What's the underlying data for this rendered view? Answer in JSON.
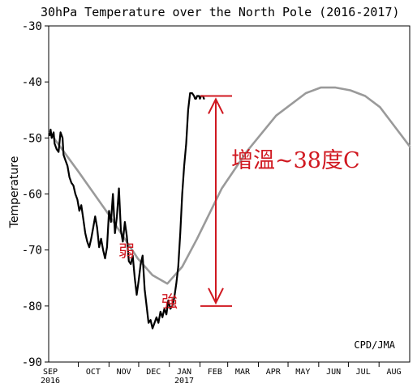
{
  "chart_data": {
    "type": "line",
    "title": "30hPa Temperature over the North Pole (2016-2017)",
    "ylabel": "Temperature",
    "xlabel": "",
    "ylim": [
      -90,
      -30
    ],
    "yticks": [
      -30,
      -40,
      -50,
      -60,
      -70,
      -80,
      -90
    ],
    "x_month_labels": [
      "SEP",
      "OCT",
      "NOV",
      "DEC",
      "JAN",
      "FEB",
      "MAR",
      "APR",
      "MAY",
      "JUN",
      "JUL",
      "AUG"
    ],
    "x_year_labels": [
      "2016",
      "2017"
    ],
    "credit": "CPD/JMA",
    "colors": {
      "observed": "#000000",
      "climatology": "#9a9a9a",
      "annotation": "#d01820"
    },
    "series": [
      {
        "style": "climatology",
        "x": [
          1,
          30,
          60,
          90,
          105,
          120,
          135,
          150,
          175,
          200,
          230,
          260,
          275,
          290,
          305,
          320,
          335,
          350,
          365
        ],
        "values": [
          -49,
          -56,
          -63.5,
          -71.5,
          -74.5,
          -76,
          -73,
          -68,
          -59,
          -52.5,
          -46,
          -42,
          -41,
          -41,
          -41.5,
          -42.5,
          -44.5,
          -48,
          -51.5
        ]
      },
      {
        "style": "observed",
        "x": [
          1,
          2,
          3,
          4,
          5,
          6,
          8,
          10,
          12,
          14,
          15,
          17,
          19,
          21,
          23,
          25,
          27,
          29,
          31,
          33,
          35,
          37,
          39,
          41,
          43,
          45,
          47,
          49,
          51,
          53,
          55,
          57,
          59,
          61,
          63,
          65,
          67,
          69,
          71,
          73,
          75,
          77,
          79,
          81,
          83,
          85,
          87,
          89,
          91,
          93,
          95,
          97,
          99,
          101,
          103,
          105,
          107,
          109,
          111,
          113,
          115,
          117,
          119,
          121,
          123,
          125,
          127,
          129,
          131,
          133,
          135,
          137,
          139,
          141,
          143,
          145,
          147,
          148,
          149,
          150,
          151,
          152,
          153,
          154,
          155,
          156,
          157
        ],
        "values": [
          -49.5,
          -48.5,
          -50,
          -49.5,
          -49,
          -51,
          -52,
          -52.5,
          -49,
          -50,
          -53,
          -54,
          -55,
          -57,
          -58,
          -58.5,
          -60,
          -61,
          -63,
          -62,
          -64.5,
          -67,
          -68.5,
          -69.5,
          -68,
          -66,
          -64,
          -66,
          -69.5,
          -68,
          -70,
          -71.5,
          -69.5,
          -63,
          -65,
          -60,
          -67,
          -64,
          -59,
          -66.5,
          -68.5,
          -65,
          -67.5,
          -72,
          -72.5,
          -71,
          -75,
          -78,
          -75.5,
          -72.5,
          -71,
          -77,
          -80,
          -83,
          -82.5,
          -84,
          -83,
          -82,
          -83,
          -81,
          -82,
          -80.5,
          -81.5,
          -79,
          -80.5,
          -80,
          -78.5,
          -76,
          -73,
          -67,
          -60,
          -55,
          -51,
          -45,
          -42,
          -42,
          -42.5,
          -43,
          -43,
          -42.5,
          -42.5,
          -42.5,
          -43,
          -42.5,
          -42.5,
          -42.5,
          -43
        ]
      }
    ],
    "annotations": {
      "warming_label": "增溫~38度C",
      "weak_label": "弱",
      "strong_label": "強",
      "arrow_top": -42.5,
      "arrow_bottom": -80
    }
  }
}
